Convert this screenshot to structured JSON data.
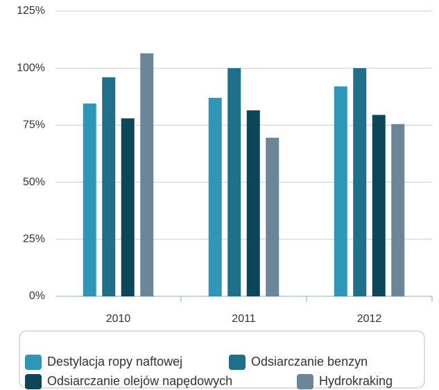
{
  "chart_data": {
    "type": "bar",
    "categories": [
      "2010",
      "2011",
      "2012"
    ],
    "series": [
      {
        "name": "Destylacja ropy naftowej",
        "color": "#2e97b8",
        "values": [
          84.5,
          87,
          92
        ]
      },
      {
        "name": "Odsiarczanie benzyn",
        "color": "#1f6f8b",
        "values": [
          96,
          100,
          100
        ]
      },
      {
        "name": "Odsiarczanie olejów napędowych",
        "color": "#0d4559",
        "values": [
          78,
          81.5,
          79.5
        ]
      },
      {
        "name": "Hydrokraking",
        "color": "#6b8599",
        "values": [
          106.5,
          69.5,
          75.5
        ]
      }
    ],
    "ylim": [
      0,
      125
    ],
    "yticks": [
      {
        "value": 0,
        "label": "0%"
      },
      {
        "value": 25,
        "label": "25%"
      },
      {
        "value": 50,
        "label": "50%"
      },
      {
        "value": 75,
        "label": "75%"
      },
      {
        "value": 100,
        "label": "100%"
      },
      {
        "value": 125,
        "label": "125%"
      }
    ],
    "grid": true,
    "legend": "bottom"
  }
}
